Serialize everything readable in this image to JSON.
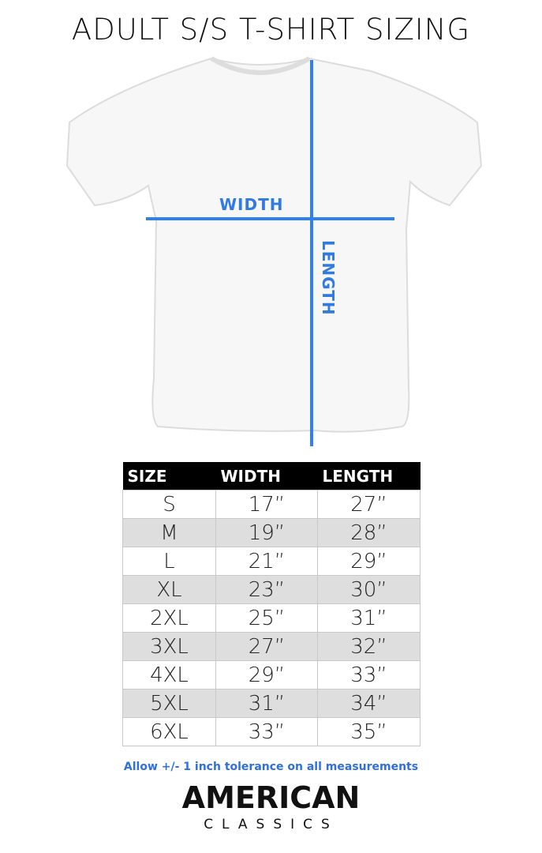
{
  "title": "ADULT S/S T-SHIRT SIZING",
  "diagram": {
    "width_label": "WIDTH",
    "length_label": "LENGTH",
    "line_color": "#2f80f0"
  },
  "table": {
    "headers": [
      "SIZE",
      "WIDTH",
      "LENGTH"
    ],
    "rows": [
      [
        "S",
        "17”",
        "27”"
      ],
      [
        "M",
        "19”",
        "28”"
      ],
      [
        "L",
        "21”",
        "29”"
      ],
      [
        "XL",
        "23”",
        "30”"
      ],
      [
        "2XL",
        "25”",
        "31”"
      ],
      [
        "3XL",
        "27”",
        "32”"
      ],
      [
        "4XL",
        "29”",
        "33”"
      ],
      [
        "5XL",
        "31”",
        "34”"
      ],
      [
        "6XL",
        "33”",
        "35”"
      ]
    ]
  },
  "note": "Allow +/- 1 inch tolerance on all measurements",
  "logo": {
    "line1": "AMERICAN",
    "line2": "CLASSICS"
  }
}
